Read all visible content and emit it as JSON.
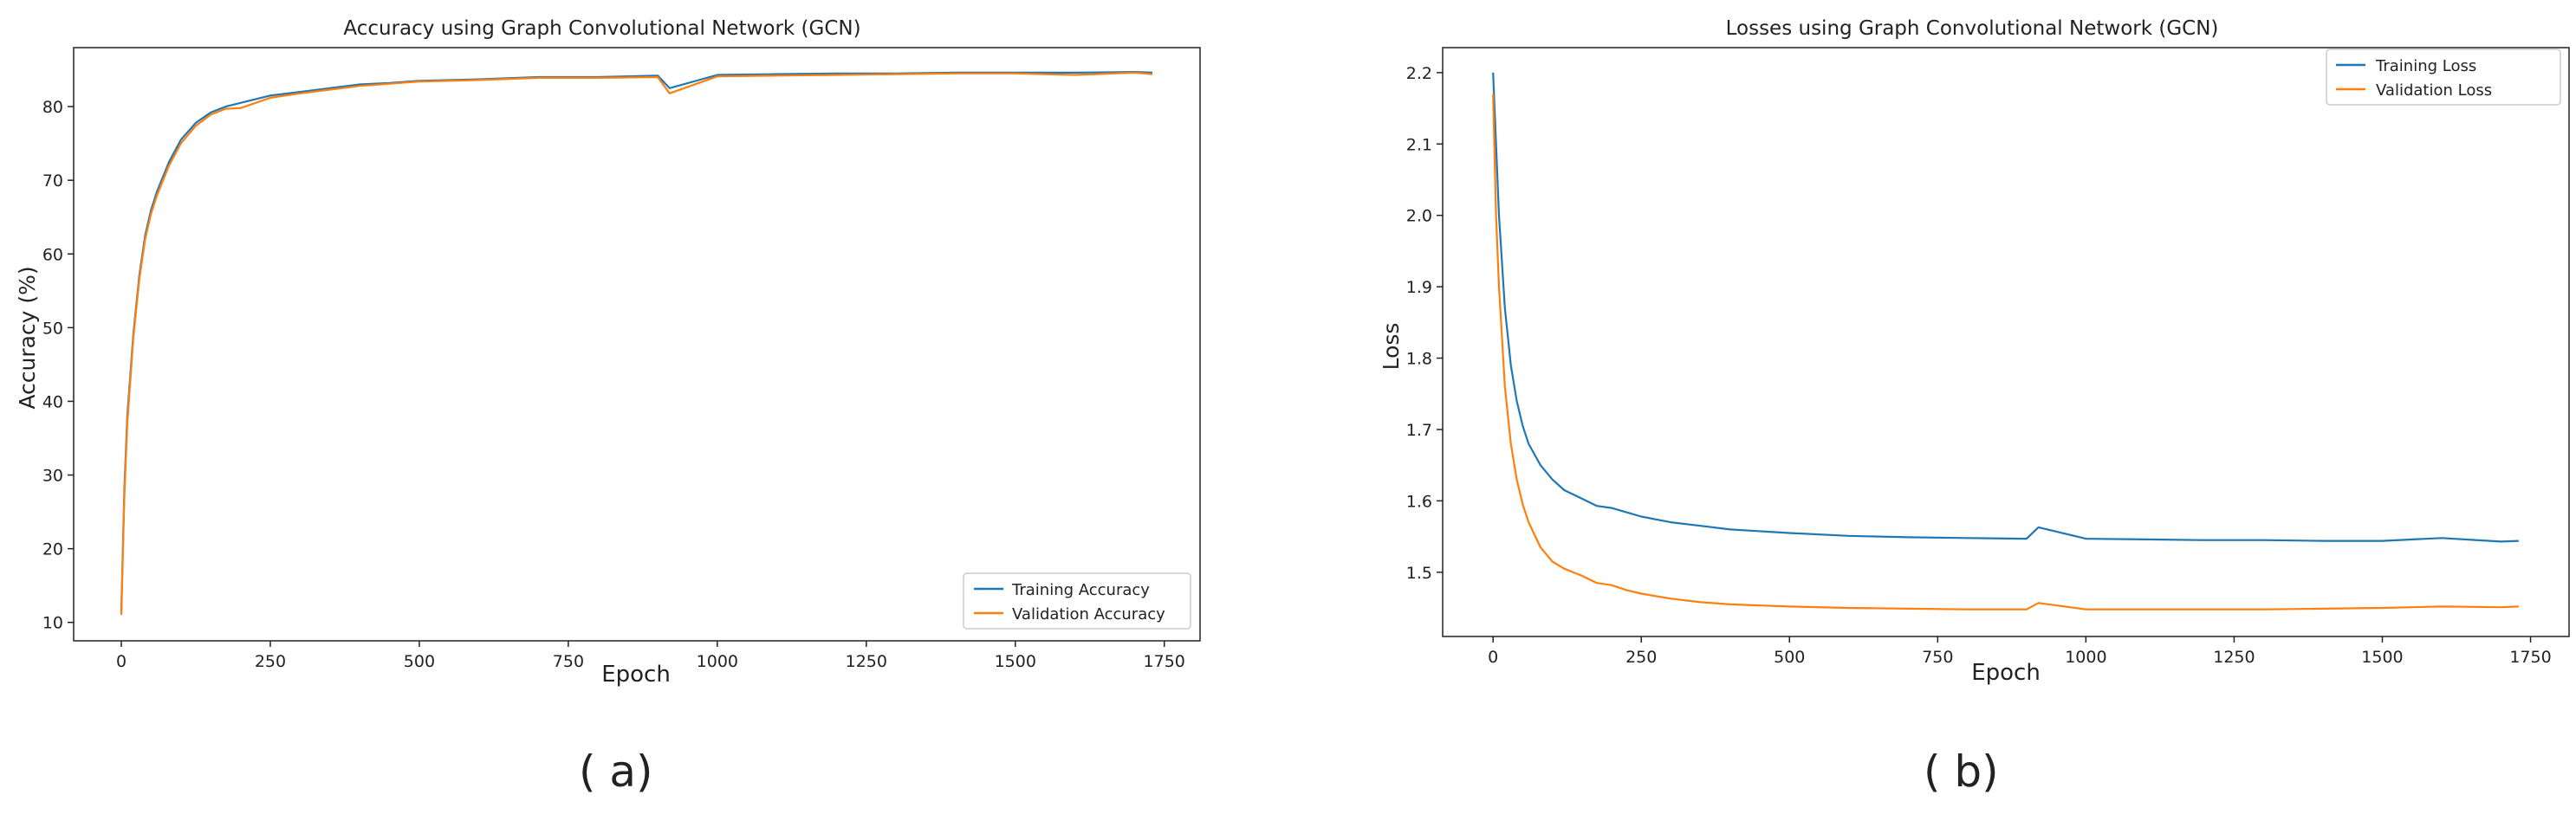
{
  "chart_data": [
    {
      "type": "line",
      "title": "Accuracy using Graph Convolutional Network (GCN)",
      "xlabel": "Epoch",
      "ylabel": "Accuracy (%)",
      "xlim": [
        -80,
        1810
      ],
      "ylim": [
        7.5,
        88
      ],
      "xticks": [
        0,
        250,
        500,
        750,
        1000,
        1250,
        1500,
        1750
      ],
      "yticks": [
        10,
        20,
        30,
        40,
        50,
        60,
        70,
        80
      ],
      "grid": false,
      "legend_position": "lower-right",
      "series": [
        {
          "name": "Training Accuracy",
          "color": "#1f77b4",
          "x": [
            0,
            5,
            10,
            20,
            30,
            40,
            50,
            60,
            80,
            100,
            125,
            150,
            175,
            200,
            250,
            300,
            350,
            400,
            450,
            500,
            600,
            700,
            800,
            900,
            920,
            1000,
            1100,
            1200,
            1300,
            1400,
            1500,
            1600,
            1700,
            1730
          ],
          "y": [
            11.5,
            28,
            38,
            49,
            57,
            62.5,
            66,
            68.5,
            72.5,
            75.5,
            77.8,
            79.2,
            80,
            80.5,
            81.5,
            82,
            82.5,
            83,
            83.2,
            83.5,
            83.7,
            84,
            84,
            84.2,
            82.5,
            84.3,
            84.4,
            84.5,
            84.5,
            84.6,
            84.6,
            84.6,
            84.7,
            84.6
          ]
        },
        {
          "name": "Validation Accuracy",
          "color": "#ff7f0e",
          "x": [
            0,
            5,
            10,
            20,
            30,
            40,
            50,
            60,
            80,
            100,
            125,
            150,
            175,
            200,
            250,
            300,
            350,
            400,
            450,
            500,
            600,
            700,
            800,
            900,
            920,
            1000,
            1100,
            1200,
            1300,
            1400,
            1500,
            1600,
            1700,
            1730
          ],
          "y": [
            11,
            27,
            37,
            48.5,
            56.5,
            62,
            65.5,
            68,
            72,
            75,
            77.4,
            78.9,
            79.7,
            79.8,
            81.2,
            81.8,
            82.3,
            82.8,
            83.1,
            83.4,
            83.6,
            83.9,
            83.9,
            84,
            81.8,
            84.1,
            84.2,
            84.3,
            84.4,
            84.5,
            84.5,
            84.3,
            84.6,
            84.4
          ]
        }
      ]
    },
    {
      "type": "line",
      "title": "Losses using Graph Convolutional Network (GCN)",
      "xlabel": "Epoch",
      "ylabel": "Loss",
      "xlim": [
        -85,
        1815
      ],
      "ylim": [
        1.41,
        2.235
      ],
      "xticks": [
        0,
        250,
        500,
        750,
        1000,
        1250,
        1500,
        1750
      ],
      "yticks": [
        1.5,
        1.6,
        1.7,
        1.8,
        1.9,
        2.0,
        2.1,
        2.2
      ],
      "grid": false,
      "legend_position": "top-right",
      "series": [
        {
          "name": "Training Loss",
          "color": "#1f77b4",
          "x": [
            0,
            5,
            10,
            20,
            30,
            40,
            50,
            60,
            80,
            100,
            120,
            150,
            175,
            200,
            225,
            250,
            300,
            350,
            400,
            500,
            600,
            700,
            800,
            900,
            920,
            1000,
            1100,
            1200,
            1300,
            1400,
            1500,
            1600,
            1700,
            1730
          ],
          "y": [
            2.2,
            2.1,
            2.0,
            1.87,
            1.79,
            1.74,
            1.705,
            1.68,
            1.65,
            1.63,
            1.615,
            1.603,
            1.593,
            1.59,
            1.584,
            1.578,
            1.57,
            1.565,
            1.56,
            1.555,
            1.551,
            1.549,
            1.548,
            1.547,
            1.563,
            1.547,
            1.546,
            1.545,
            1.545,
            1.544,
            1.544,
            1.548,
            1.543,
            1.544
          ]
        },
        {
          "name": "Validation Loss",
          "color": "#ff7f0e",
          "x": [
            0,
            5,
            10,
            20,
            30,
            40,
            50,
            60,
            80,
            100,
            120,
            150,
            175,
            200,
            225,
            250,
            300,
            350,
            400,
            500,
            600,
            700,
            800,
            900,
            920,
            1000,
            1100,
            1200,
            1300,
            1400,
            1500,
            1600,
            1700,
            1730
          ],
          "y": [
            2.17,
            2.0,
            1.9,
            1.76,
            1.68,
            1.63,
            1.595,
            1.57,
            1.535,
            1.515,
            1.505,
            1.495,
            1.485,
            1.482,
            1.475,
            1.47,
            1.463,
            1.458,
            1.455,
            1.452,
            1.45,
            1.449,
            1.448,
            1.448,
            1.457,
            1.448,
            1.448,
            1.448,
            1.448,
            1.449,
            1.45,
            1.452,
            1.451,
            1.452
          ]
        }
      ]
    }
  ],
  "captions": [
    "( a)",
    "( b)"
  ]
}
